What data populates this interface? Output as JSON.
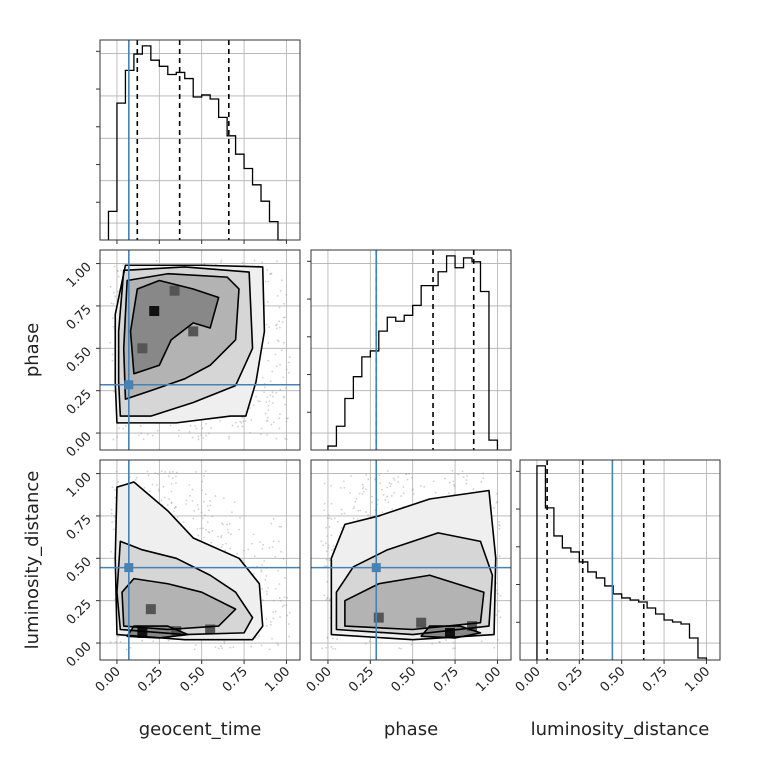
{
  "chart_data": {
    "type": "corner",
    "parameters": [
      "geocent_time",
      "phase",
      "luminosity_distance"
    ],
    "axis_range": [
      -0.1,
      1.08
    ],
    "tick_labels": [
      "0.00",
      "0.25",
      "0.50",
      "0.75",
      "1.00"
    ],
    "tick_values": [
      0,
      0.25,
      0.5,
      0.75,
      1.0
    ],
    "truths": {
      "geocent_time": 0.07,
      "phase": 0.285,
      "luminosity_distance": 0.445
    },
    "quantiles": {
      "geocent_time": [
        0.12,
        0.37,
        0.66
      ],
      "phase": [
        0.285,
        0.62,
        0.86
      ],
      "luminosity_distance": [
        0.06,
        0.27,
        0.63
      ]
    },
    "histograms": {
      "geocent_time": {
        "bin_edges": [
          -0.05,
          0.0,
          0.05,
          0.1,
          0.15,
          0.2,
          0.25,
          0.3,
          0.35,
          0.4,
          0.45,
          0.5,
          0.55,
          0.6,
          0.65,
          0.7,
          0.75,
          0.8,
          0.85,
          0.9,
          0.95,
          1.0
        ],
        "counts": [
          0.14,
          0.67,
          0.83,
          0.91,
          0.95,
          0.88,
          0.85,
          0.81,
          0.82,
          0.79,
          0.7,
          0.71,
          0.69,
          0.6,
          0.51,
          0.42,
          0.35,
          0.27,
          0.19,
          0.09,
          0.0
        ]
      },
      "phase": {
        "bin_edges": [
          0.0,
          0.05,
          0.1,
          0.15,
          0.2,
          0.25,
          0.3,
          0.35,
          0.4,
          0.45,
          0.5,
          0.55,
          0.6,
          0.65,
          0.7,
          0.75,
          0.8,
          0.85,
          0.9,
          0.95,
          1.0
        ],
        "counts": [
          0.02,
          0.12,
          0.26,
          0.37,
          0.47,
          0.5,
          0.6,
          0.67,
          0.65,
          0.68,
          0.73,
          0.83,
          0.83,
          0.9,
          0.98,
          0.92,
          0.97,
          0.95,
          0.8,
          0.05
        ]
      },
      "luminosity_distance": {
        "bin_edges": [
          0.0,
          0.05,
          0.1,
          0.15,
          0.2,
          0.25,
          0.3,
          0.35,
          0.4,
          0.45,
          0.5,
          0.55,
          0.6,
          0.65,
          0.7,
          0.75,
          0.8,
          0.85,
          0.9,
          0.95,
          1.0
        ],
        "counts": [
          0.97,
          0.76,
          0.62,
          0.56,
          0.54,
          0.49,
          0.44,
          0.41,
          0.37,
          0.33,
          0.31,
          0.3,
          0.29,
          0.26,
          0.23,
          0.2,
          0.19,
          0.18,
          0.11,
          0.01
        ]
      }
    },
    "contour_panels": [
      {
        "x": "geocent_time",
        "y": "phase",
        "contour_levels": [
          [
            [
              0.0,
              0.06
            ],
            [
              0.35,
              0.06
            ],
            [
              0.67,
              0.1
            ],
            [
              0.76,
              0.1
            ],
            [
              0.82,
              0.3
            ],
            [
              0.87,
              0.6
            ],
            [
              0.86,
              0.98
            ],
            [
              0.5,
              0.99
            ],
            [
              0.05,
              0.99
            ],
            [
              -0.01,
              0.7
            ],
            [
              -0.01,
              0.3
            ]
          ],
          [
            [
              0.02,
              0.1
            ],
            [
              0.2,
              0.1
            ],
            [
              0.45,
              0.18
            ],
            [
              0.7,
              0.28
            ],
            [
              0.8,
              0.5
            ],
            [
              0.78,
              0.95
            ],
            [
              0.4,
              0.98
            ],
            [
              0.04,
              0.96
            ],
            [
              0.01,
              0.6
            ],
            [
              0.01,
              0.3
            ]
          ],
          [
            [
              0.05,
              0.2
            ],
            [
              0.2,
              0.25
            ],
            [
              0.4,
              0.32
            ],
            [
              0.55,
              0.4
            ],
            [
              0.7,
              0.55
            ],
            [
              0.72,
              0.85
            ],
            [
              0.65,
              0.92
            ],
            [
              0.3,
              0.94
            ],
            [
              0.06,
              0.9
            ],
            [
              0.04,
              0.5
            ]
          ],
          [
            [
              0.1,
              0.35
            ],
            [
              0.25,
              0.4
            ],
            [
              0.32,
              0.55
            ],
            [
              0.45,
              0.65
            ],
            [
              0.55,
              0.62
            ],
            [
              0.6,
              0.8
            ],
            [
              0.45,
              0.85
            ],
            [
              0.25,
              0.9
            ],
            [
              0.12,
              0.85
            ],
            [
              0.08,
              0.6
            ]
          ]
        ],
        "density_peaks": [
          [
            0.22,
            0.72
          ],
          [
            0.34,
            0.84
          ],
          [
            0.15,
            0.5
          ],
          [
            0.45,
            0.6
          ]
        ]
      },
      {
        "x": "geocent_time",
        "y": "luminosity_distance",
        "contour_levels": [
          [
            [
              0.0,
              0.05
            ],
            [
              0.4,
              0.02
            ],
            [
              0.8,
              0.02
            ],
            [
              0.86,
              0.1
            ],
            [
              0.84,
              0.35
            ],
            [
              0.72,
              0.5
            ],
            [
              0.45,
              0.62
            ],
            [
              0.3,
              0.78
            ],
            [
              0.1,
              0.95
            ],
            [
              0.0,
              0.92
            ],
            [
              -0.01,
              0.5
            ]
          ],
          [
            [
              0.02,
              0.08
            ],
            [
              0.4,
              0.05
            ],
            [
              0.75,
              0.06
            ],
            [
              0.8,
              0.15
            ],
            [
              0.7,
              0.3
            ],
            [
              0.55,
              0.4
            ],
            [
              0.35,
              0.5
            ],
            [
              0.15,
              0.55
            ],
            [
              0.02,
              0.6
            ],
            [
              0.0,
              0.3
            ]
          ],
          [
            [
              0.04,
              0.1
            ],
            [
              0.3,
              0.08
            ],
            [
              0.6,
              0.1
            ],
            [
              0.7,
              0.2
            ],
            [
              0.5,
              0.3
            ],
            [
              0.3,
              0.35
            ],
            [
              0.1,
              0.38
            ],
            [
              0.03,
              0.3
            ]
          ],
          [
            [
              0.06,
              0.04
            ],
            [
              0.25,
              0.03
            ],
            [
              0.42,
              0.05
            ],
            [
              0.3,
              0.1
            ],
            [
              0.1,
              0.1
            ]
          ]
        ],
        "density_peaks": [
          [
            0.15,
            0.06
          ],
          [
            0.35,
            0.07
          ],
          [
            0.55,
            0.08
          ],
          [
            0.2,
            0.2
          ]
        ]
      },
      {
        "x": "phase",
        "y": "luminosity_distance",
        "contour_levels": [
          [
            [
              0.02,
              0.05
            ],
            [
              0.5,
              0.02
            ],
            [
              0.98,
              0.05
            ],
            [
              0.99,
              0.5
            ],
            [
              0.95,
              0.9
            ],
            [
              0.6,
              0.85
            ],
            [
              0.3,
              0.75
            ],
            [
              0.1,
              0.7
            ],
            [
              0.02,
              0.5
            ]
          ],
          [
            [
              0.05,
              0.08
            ],
            [
              0.5,
              0.05
            ],
            [
              0.95,
              0.1
            ],
            [
              0.97,
              0.4
            ],
            [
              0.9,
              0.6
            ],
            [
              0.65,
              0.65
            ],
            [
              0.35,
              0.55
            ],
            [
              0.15,
              0.45
            ],
            [
              0.05,
              0.3
            ]
          ],
          [
            [
              0.1,
              0.1
            ],
            [
              0.5,
              0.08
            ],
            [
              0.9,
              0.12
            ],
            [
              0.92,
              0.3
            ],
            [
              0.6,
              0.4
            ],
            [
              0.3,
              0.35
            ],
            [
              0.1,
              0.25
            ]
          ],
          [
            [
              0.55,
              0.04
            ],
            [
              0.75,
              0.03
            ],
            [
              0.9,
              0.06
            ],
            [
              0.78,
              0.1
            ],
            [
              0.6,
              0.1
            ]
          ]
        ],
        "density_peaks": [
          [
            0.72,
            0.06
          ],
          [
            0.55,
            0.12
          ],
          [
            0.85,
            0.1
          ],
          [
            0.3,
            0.15
          ]
        ]
      }
    ]
  }
}
